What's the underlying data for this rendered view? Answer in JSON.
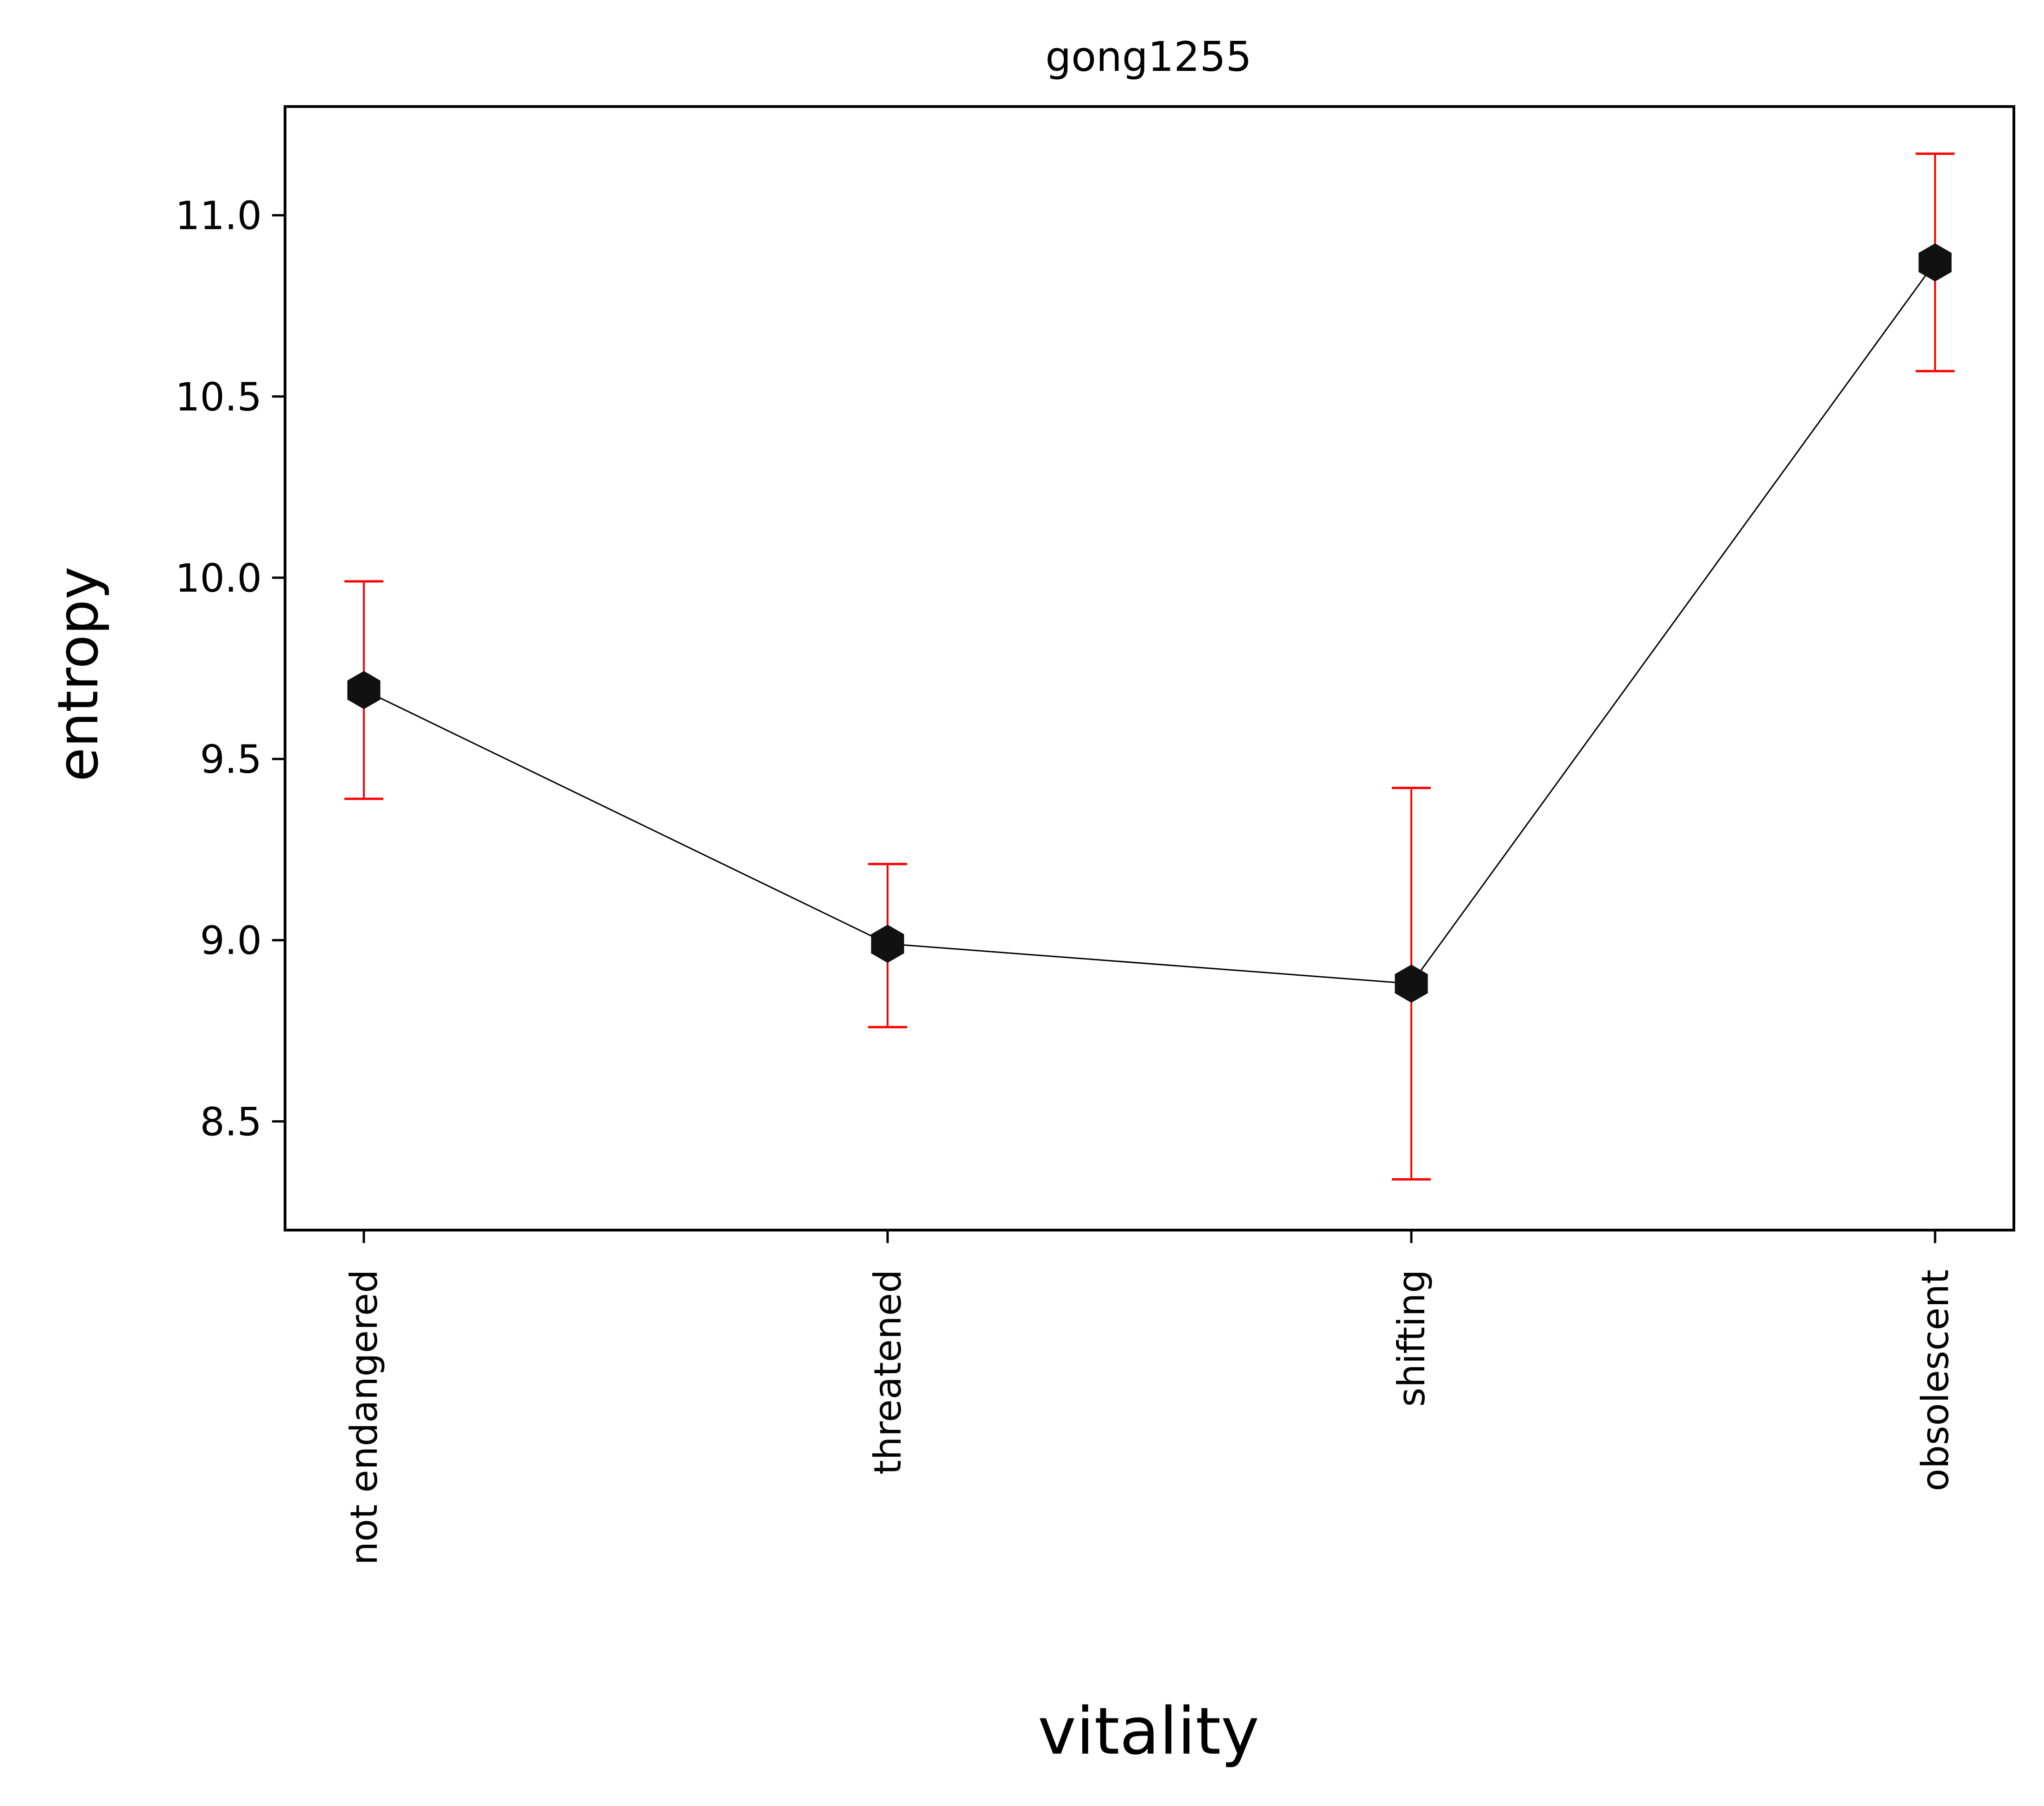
{
  "chart_data": {
    "type": "line",
    "title": "gong1255",
    "xlabel": "vitality",
    "ylabel": "entropy",
    "categories": [
      "not endangered",
      "threatened",
      "shifting",
      "obsolescent"
    ],
    "series": [
      {
        "values": [
          9.69,
          8.99,
          8.88,
          10.87
        ],
        "error_low": [
          9.39,
          8.76,
          8.34,
          10.57
        ],
        "error_high": [
          9.99,
          9.21,
          9.42,
          11.17
        ]
      }
    ],
    "ylim": [
      8.2,
      11.3
    ],
    "yticks": [
      "8.5",
      "9.0",
      "9.5",
      "10.0",
      "10.5",
      "11.0"
    ],
    "grid": false,
    "legend": "none",
    "colors": {
      "line": "#000000",
      "marker": "#111111",
      "errorbar": "#ff0000",
      "axes": "#000000"
    }
  }
}
